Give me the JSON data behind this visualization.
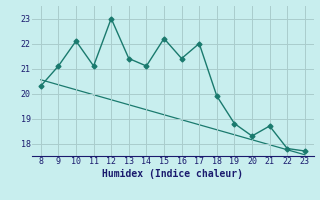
{
  "x": [
    8,
    9,
    10,
    11,
    12,
    13,
    14,
    15,
    16,
    17,
    18,
    19,
    20,
    21,
    22,
    23
  ],
  "y": [
    20.3,
    21.1,
    22.1,
    21.1,
    23.0,
    21.4,
    21.1,
    22.2,
    21.4,
    22.0,
    19.9,
    18.8,
    18.3,
    18.7,
    17.8,
    17.7
  ],
  "trend_x": [
    8,
    23
  ],
  "trend_y": [
    20.55,
    17.55
  ],
  "line_color": "#1a7a6e",
  "bg_color": "#c8eeee",
  "grid_color": "#aacccc",
  "xlabel": "Humidex (Indice chaleur)",
  "xlim": [
    7.5,
    23.5
  ],
  "ylim": [
    17.5,
    23.5
  ],
  "xticks": [
    8,
    9,
    10,
    11,
    12,
    13,
    14,
    15,
    16,
    17,
    18,
    19,
    20,
    21,
    22,
    23
  ],
  "yticks": [
    18,
    19,
    20,
    21,
    22,
    23
  ],
  "marker_size": 2.5,
  "linewidth": 1.0,
  "trend_linewidth": 0.9,
  "tick_fontsize": 6.0,
  "xlabel_fontsize": 7.0
}
